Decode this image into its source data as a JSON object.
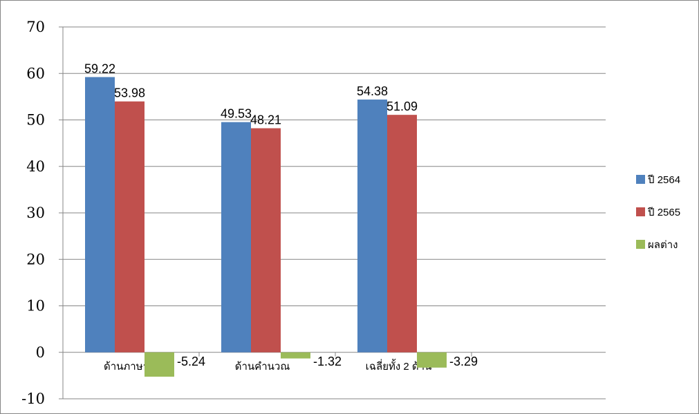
{
  "chart_data": {
    "type": "bar",
    "categories": [
      "ด้านภาษา",
      "ด้านคำนวณ",
      "เฉลี่ยทั้ง 2 ด้าน"
    ],
    "series": [
      {
        "name": "ปี 2564",
        "values": [
          59.22,
          49.53,
          54.38
        ],
        "color": "#4F81BD"
      },
      {
        "name": "ปี 2565",
        "values": [
          53.98,
          48.21,
          51.09
        ],
        "color": "#C0504D"
      },
      {
        "name": "ผลต่าง",
        "values": [
          -5.24,
          -1.32,
          -3.29
        ],
        "color": "#9BBB59"
      }
    ],
    "ylim": [
      -10,
      70
    ],
    "yticks": [
      -10,
      0,
      10,
      20,
      30,
      40,
      50,
      60,
      70
    ],
    "title": "",
    "xlabel": "",
    "ylabel": "",
    "grid": true,
    "legend_position": "right"
  }
}
